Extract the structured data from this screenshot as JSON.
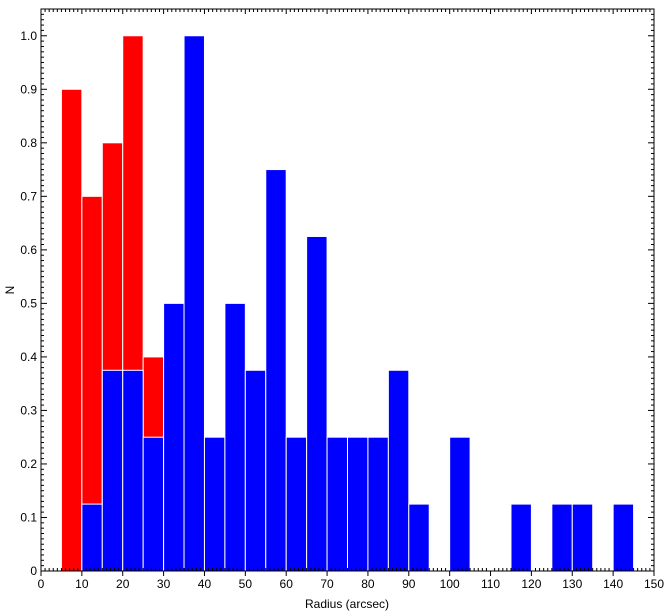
{
  "chart_data": {
    "type": "bar",
    "title": "",
    "xlabel": "Radius (arcsec)",
    "ylabel": "N",
    "xlim": [
      0,
      150
    ],
    "ylim": [
      0,
      1.05
    ],
    "bin_width": 5,
    "grid": false,
    "xticks": [
      0,
      10,
      20,
      30,
      40,
      50,
      60,
      70,
      80,
      90,
      100,
      110,
      120,
      130,
      140,
      150
    ],
    "yticks": [
      0,
      0.1,
      0.2,
      0.3,
      0.4,
      0.5,
      0.6,
      0.7,
      0.8,
      0.9,
      1.0
    ],
    "ytick_labels": [
      "0",
      "0.1",
      "0.2",
      "0.3",
      "0.4",
      "0.5",
      "0.6",
      "0.7",
      "0.8",
      "0.9",
      "1.0"
    ],
    "series": [
      {
        "name": "red",
        "color": "#ff0000",
        "bins_start": [
          5,
          10,
          15,
          20,
          25
        ],
        "values": [
          0.9,
          0.7,
          0.8,
          1.0,
          0.4
        ]
      },
      {
        "name": "blue",
        "color": "#0000ff",
        "bins_start": [
          10,
          15,
          20,
          25,
          30,
          35,
          40,
          45,
          50,
          55,
          60,
          65,
          70,
          75,
          80,
          85,
          90,
          100,
          115,
          125,
          130,
          140
        ],
        "values": [
          0.125,
          0.375,
          0.375,
          0.25,
          0.5,
          1.0,
          0.25,
          0.5,
          0.375,
          0.75,
          0.25,
          0.625,
          0.25,
          0.25,
          0.25,
          0.375,
          0.125,
          0.25,
          0.125,
          0.125,
          0.125,
          0.125
        ]
      }
    ]
  }
}
